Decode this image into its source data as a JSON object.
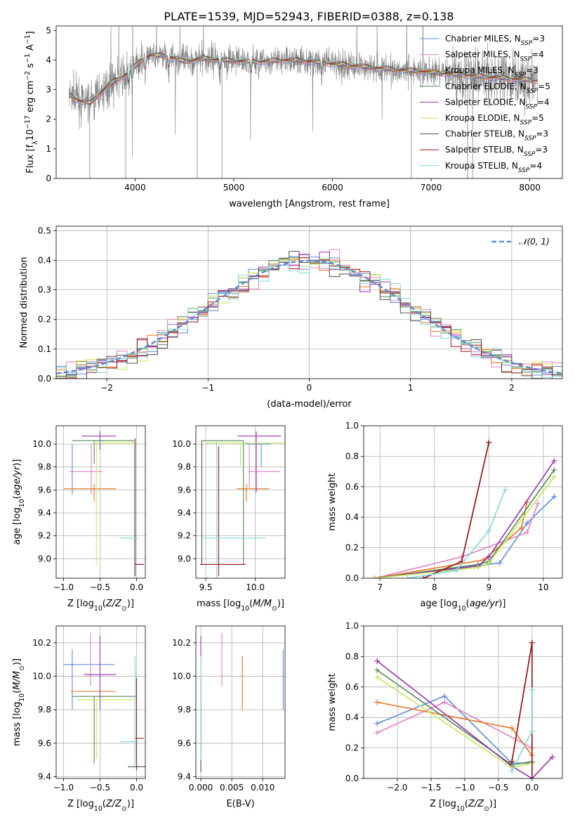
{
  "figure_title": "PLATE=1539, MJD=52943, FIBERID=0388, z=0.138",
  "colors": {
    "Chabrier MILES": "#5b8bd8",
    "Salpeter MILES": "#e37fc4",
    "Kroupa MILES": "#e9731f",
    "Chabrier ELODIE": "#4f8a4f",
    "Salpeter ELODIE": "#9b2fae",
    "Kroupa ELODIE": "#c2e857",
    "Chabrier STELIB": "#4d4d4d",
    "Salpeter STELIB": "#a01414",
    "Kroupa STELIB": "#7fd8dc",
    "data": "#808080",
    "normal": "#5b8bd8",
    "grid": "#b0b0b0"
  },
  "chart_data": [
    {
      "id": "spectrum",
      "type": "line",
      "xlabel": "wavelength [Angstrom, rest frame]",
      "ylabel": "Flux [f_λ10^-17 erg cm^-2 s^-1 A^-1]",
      "xlim": [
        3200,
        8330
      ],
      "ylim": [
        0,
        5.15
      ],
      "xticks": [
        4000,
        5000,
        6000,
        7000,
        8000
      ],
      "yticks": [
        0,
        1,
        2,
        3,
        4,
        5
      ],
      "grid": false,
      "legend_position": "top-right",
      "legend": [
        {
          "name": "Chabrier MILES",
          "nssp": 3
        },
        {
          "name": "Salpeter MILES",
          "nssp": 4
        },
        {
          "name": "Kroupa MILES",
          "nssp": 3
        },
        {
          "name": "Chabrier ELODIE",
          "nssp": 5
        },
        {
          "name": "Salpeter ELODIE",
          "nssp": 4
        },
        {
          "name": "Kroupa ELODIE",
          "nssp": 5
        },
        {
          "name": "Chabrier STELIB",
          "nssp": 3
        },
        {
          "name": "Salpeter STELIB",
          "nssp": 3
        },
        {
          "name": "Kroupa STELIB",
          "nssp": 4
        }
      ],
      "continuum": {
        "x": [
          3350,
          3450,
          3550,
          3650,
          3750,
          3850,
          3950,
          4050,
          4150,
          4300,
          4500,
          4700,
          4900,
          5100,
          5300,
          5500,
          5700,
          5900,
          6100,
          6300,
          6500,
          6700,
          6900,
          7100,
          7300,
          7500,
          7700,
          7900,
          8100
        ],
        "y": [
          2.8,
          2.6,
          2.55,
          2.9,
          3.2,
          3.4,
          3.6,
          3.95,
          4.15,
          4.15,
          3.95,
          4.05,
          4.0,
          3.95,
          3.95,
          4.0,
          3.98,
          3.9,
          3.85,
          3.78,
          3.72,
          3.66,
          3.62,
          3.55,
          3.5,
          3.45,
          3.4,
          3.35,
          3.3
        ]
      }
    },
    {
      "id": "residuals",
      "type": "histogram",
      "xlabel": "(data-model)/error",
      "ylabel": "Normed distribution",
      "xlim": [
        -2.5,
        2.5
      ],
      "ylim": [
        0,
        0.515
      ],
      "xticks": [
        -2,
        -1,
        0,
        1,
        2
      ],
      "yticks": [
        0.0,
        0.1,
        0.2,
        0.3,
        0.4,
        0.5
      ],
      "grid": true,
      "legend_position": "top-right",
      "legend": [
        "𝒩(0, 1)"
      ],
      "bin_width": 0.1,
      "curve": {
        "mean": 0,
        "sigma": 1
      }
    },
    {
      "id": "age_vs_Z",
      "type": "errorbar",
      "xlabel": "Z [log10(Z/Z⊙)]",
      "ylabel": "age [log10(age/yr)]",
      "xlim": [
        -1.1,
        0.12
      ],
      "ylim": [
        8.83,
        10.16
      ],
      "xticks": [
        -1.0,
        -0.5,
        0.0
      ],
      "yticks": [
        9.0,
        9.2,
        9.4,
        9.6,
        9.8,
        10.0
      ],
      "points": [
        {
          "s": "Chabrier MILES",
          "x": -0.88,
          "y": 10.0,
          "xl": -0.27,
          "xh": -0.38,
          "yl": -0.44,
          "yh": 0.0
        },
        {
          "s": "Salpeter MILES",
          "x": -0.62,
          "y": 9.76,
          "xl": -0.3,
          "xh": 0.15,
          "yl": -0.2,
          "yh": 0.24
        },
        {
          "s": "Kroupa MILES",
          "x": -0.58,
          "y": 9.61,
          "xl": -0.42,
          "xh": 0.3,
          "yl": -0.11,
          "yh": 0.04
        },
        {
          "s": "Chabrier ELODIE",
          "x": -0.58,
          "y": 10.03,
          "xl": -0.3,
          "xh": 0.55,
          "yl": -0.2,
          "yh": 0.0
        },
        {
          "s": "Salpeter ELODIE",
          "x": -0.5,
          "y": 10.07,
          "xl": -0.25,
          "xh": 0.22,
          "yl": -0.12,
          "yh": 0.04
        },
        {
          "s": "Kroupa ELODIE",
          "x": -0.55,
          "y": 10.01,
          "xl": -0.05,
          "xh": 0.53,
          "yl": -1.07,
          "yh": 0.0
        },
        {
          "s": "Chabrier STELIB",
          "x": 0.0,
          "y": 8.95,
          "xl": -0.02,
          "xh": 0.08,
          "yl": 0.0,
          "yh": 0.0
        },
        {
          "s": "Salpeter STELIB",
          "x": -0.02,
          "y": 8.95,
          "xl": 0.0,
          "xh": 0.12,
          "yl": -0.1,
          "yh": 1.1
        },
        {
          "s": "Kroupa STELIB",
          "x": -0.03,
          "y": 9.18,
          "xl": -0.2,
          "xh": 0.05,
          "yl": -0.35,
          "yh": 0.81
        }
      ]
    },
    {
      "id": "age_vs_mass",
      "type": "errorbar",
      "xlabel": "mass [log10(M/M⊙)]",
      "ylabel": "",
      "xlim": [
        9.4,
        10.3
      ],
      "ylim": [
        8.83,
        10.16
      ],
      "xticks": [
        9.5,
        10.0
      ],
      "yticks": [
        9.0,
        9.2,
        9.4,
        9.6,
        9.8,
        10.0
      ],
      "points": [
        {
          "s": "Chabrier MILES",
          "x": 10.06,
          "y": 10.0,
          "xl": -0.16,
          "xh": 0.1,
          "yl": -0.2,
          "yh": 0.0
        },
        {
          "s": "Salpeter MILES",
          "x": 9.94,
          "y": 9.76,
          "xl": -0.01,
          "xh": 0.31,
          "yl": -0.14,
          "yh": 0.24
        },
        {
          "s": "Kroupa MILES",
          "x": 9.91,
          "y": 9.61,
          "xl": -0.1,
          "xh": 0.23,
          "yl": -0.11,
          "yh": 0.04
        },
        {
          "s": "Chabrier ELODIE",
          "x": 9.88,
          "y": 10.03,
          "xl": -0.42,
          "xh": 0.0,
          "yl": -1.08,
          "yh": 0.0
        },
        {
          "s": "Salpeter ELODIE",
          "x": 10.01,
          "y": 10.07,
          "xl": -0.19,
          "xh": 0.25,
          "yl": -0.49,
          "yh": 0.04
        },
        {
          "s": "Kroupa ELODIE",
          "x": 9.85,
          "y": 10.01,
          "xl": -0.35,
          "xh": 0.5,
          "yl": -0.2,
          "yh": 0.0
        },
        {
          "s": "Chabrier STELIB",
          "x": 9.46,
          "y": 8.95,
          "xl": -0.02,
          "xh": 0.42,
          "yl": 0.0,
          "yh": 1.08
        },
        {
          "s": "Salpeter STELIB",
          "x": 9.63,
          "y": 8.95,
          "xl": -0.17,
          "xh": 0.27,
          "yl": -0.1,
          "yh": 1.03
        },
        {
          "s": "Kroupa STELIB",
          "x": 9.61,
          "y": 9.18,
          "xl": -0.15,
          "xh": 0.5,
          "yl": -0.35,
          "yh": 0.84
        }
      ]
    },
    {
      "id": "mass_weight_vs_age",
      "type": "line",
      "xlabel": "age [log10(age/yr)]",
      "ylabel": "mass weight",
      "xlim": [
        6.7,
        10.35
      ],
      "ylim": [
        0,
        1.0
      ],
      "xticks": [
        7,
        8,
        9,
        10
      ],
      "yticks": [
        0.0,
        0.2,
        0.4,
        0.6,
        0.8,
        1.0
      ],
      "grid": true,
      "series": [
        {
          "s": "Chabrier MILES",
          "x": [
            6.9,
            9.2,
            9.7,
            10.2
          ],
          "y": [
            0.0,
            0.1,
            0.36,
            0.535
          ]
        },
        {
          "s": "Salpeter MILES",
          "x": [
            6.9,
            8.5,
            9.7,
            9.9
          ],
          "y": [
            0.0,
            0.14,
            0.3,
            0.49
          ]
        },
        {
          "s": "Kroupa MILES",
          "x": [
            6.9,
            8.9,
            9.6,
            9.7
          ],
          "y": [
            0.0,
            0.12,
            0.33,
            0.5
          ]
        },
        {
          "s": "Chabrier ELODIE",
          "x": [
            6.9,
            8.8,
            9.0,
            10.2
          ],
          "y": [
            0.0,
            0.09,
            0.11,
            0.71
          ]
        },
        {
          "s": "Salpeter ELODIE",
          "x": [
            6.9,
            8.8,
            9.0,
            10.2
          ],
          "y": [
            0.0,
            0.08,
            0.14,
            0.77
          ]
        },
        {
          "s": "Kroupa ELODIE",
          "x": [
            6.9,
            8.8,
            9.0,
            10.2
          ],
          "y": [
            0.0,
            0.07,
            0.1,
            0.665
          ]
        },
        {
          "s": "Chabrier STELIB",
          "x": [
            7.8,
            8.5,
            9.0
          ],
          "y": [
            0.0,
            0.11,
            0.89
          ]
        },
        {
          "s": "Salpeter STELIB",
          "x": [
            7.8,
            8.5,
            9.0
          ],
          "y": [
            0.0,
            0.11,
            0.89
          ]
        },
        {
          "s": "Kroupa STELIB",
          "x": [
            7.5,
            8.4,
            9.0,
            9.3
          ],
          "y": [
            0.0,
            0.05,
            0.31,
            0.58
          ]
        }
      ]
    },
    {
      "id": "mass_vs_Z",
      "type": "errorbar",
      "xlabel": "Z [log10(Z/Z⊙)]",
      "ylabel": "mass [log10(M/M⊙)]",
      "xlim": [
        -1.1,
        0.12
      ],
      "ylim": [
        9.39,
        10.3
      ],
      "xticks": [
        -1.0,
        -0.5,
        0.0
      ],
      "yticks": [
        9.4,
        9.6,
        9.8,
        10.0,
        10.2
      ],
      "points": [
        {
          "s": "Chabrier MILES",
          "x": -0.88,
          "y": 10.07,
          "xl": -0.12,
          "xh": 0.58,
          "yl": -0.27,
          "yh": 0.09
        },
        {
          "s": "Salpeter MILES",
          "x": -0.63,
          "y": 10.0,
          "xl": -0.05,
          "xh": 0.0,
          "yl": -0.06,
          "yh": 0.26
        },
        {
          "s": "Kroupa MILES",
          "x": -0.68,
          "y": 9.91,
          "xl": -0.22,
          "xh": 0.4,
          "yl": 0.0,
          "yh": 0.0
        },
        {
          "s": "Chabrier ELODIE",
          "x": -0.58,
          "y": 9.88,
          "xl": -0.3,
          "xh": 0.58,
          "yl": -0.4,
          "yh": 0.0
        },
        {
          "s": "Salpeter ELODIE",
          "x": -0.5,
          "y": 10.01,
          "xl": -0.22,
          "xh": 0.22,
          "yl": -0.21,
          "yh": 0.23
        },
        {
          "s": "Kroupa ELODIE",
          "x": -0.55,
          "y": 9.86,
          "xl": -0.27,
          "xh": 0.51,
          "yl": -0.35,
          "yh": 0.0
        },
        {
          "s": "Chabrier STELIB",
          "x": -0.02,
          "y": 9.46,
          "xl": -0.1,
          "xh": 0.14,
          "yl": 0.0,
          "yh": 0.42
        },
        {
          "s": "Salpeter STELIB",
          "x": 0.0,
          "y": 9.63,
          "xl": -0.02,
          "xh": 0.1,
          "yl": -0.19,
          "yh": 0.36
        },
        {
          "s": "Kroupa STELIB",
          "x": -0.02,
          "y": 9.61,
          "xl": -0.2,
          "xh": 0.05,
          "yl": -0.16,
          "yh": 0.51
        }
      ]
    },
    {
      "id": "mass_vs_EBV",
      "type": "errorbar",
      "xlabel": "E(B-V)",
      "ylabel": "",
      "xlim": [
        -0.0008,
        0.0136
      ],
      "ylim": [
        9.39,
        10.3
      ],
      "xticks": [
        0.0,
        0.005,
        0.01
      ],
      "yticks": [
        9.4,
        9.6,
        9.8,
        10.0,
        10.2
      ],
      "points": [
        {
          "s": "Chabrier MILES",
          "x": 0.0133,
          "y": 10.0,
          "xl": 0,
          "xh": 0,
          "yl": -0.2,
          "yh": 0.16
        },
        {
          "s": "Salpeter MILES",
          "x": 0.0034,
          "y": 10.1,
          "xl": 0,
          "xh": 0,
          "yl": -0.16,
          "yh": 0.16
        },
        {
          "s": "Kroupa MILES",
          "x": 0.0067,
          "y": 9.96,
          "xl": 0,
          "xh": 0,
          "yl": -0.16,
          "yh": 0.16
        },
        {
          "s": "Chabrier ELODIE",
          "x": 0.0,
          "y": 9.85,
          "xl": 0,
          "xh": 0,
          "yl": -0.35,
          "yh": 0.0
        },
        {
          "s": "Salpeter ELODIE",
          "x": 0.0,
          "y": 10.0,
          "xl": 0,
          "xh": 0,
          "yl": -0.2,
          "yh": 0.24
        },
        {
          "s": "Kroupa ELODIE",
          "x": 0.0,
          "y": 9.85,
          "xl": 0,
          "xh": 0,
          "yl": -0.4,
          "yh": 0.0
        },
        {
          "s": "Chabrier STELIB",
          "x": 0.0,
          "y": 9.46,
          "xl": 0,
          "xh": 0,
          "yl": -0.03,
          "yh": 0.35
        },
        {
          "s": "Salpeter STELIB",
          "x": 0.0,
          "y": 9.63,
          "xl": 0,
          "xh": 0,
          "yl": -0.1,
          "yh": 0.36
        },
        {
          "s": "Kroupa STELIB",
          "x": 0.0,
          "y": 9.8,
          "xl": 0,
          "xh": 0,
          "yl": -0.3,
          "yh": 0.32
        }
      ]
    },
    {
      "id": "mass_weight_vs_Z",
      "type": "line",
      "xlabel": "Z [log10(Z/Z⊙)]",
      "ylabel": "mass weight",
      "xlim": [
        -2.5,
        0.45
      ],
      "ylim": [
        0,
        1.0
      ],
      "xticks": [
        -2.0,
        -1.5,
        -1.0,
        -0.5,
        0.0
      ],
      "yticks": [
        0.0,
        0.2,
        0.4,
        0.6,
        0.8,
        1.0
      ],
      "grid": true,
      "series": [
        {
          "s": "Chabrier MILES",
          "x": [
            -2.3,
            -1.3,
            -0.3,
            0.0
          ],
          "y": [
            0.36,
            0.54,
            0.1,
            0.1
          ]
        },
        {
          "s": "Salpeter MILES",
          "x": [
            -2.3,
            -1.3,
            0.0
          ],
          "y": [
            0.3,
            0.5,
            0.2
          ]
        },
        {
          "s": "Kroupa MILES",
          "x": [
            -2.3,
            -0.3,
            0.0
          ],
          "y": [
            0.5,
            0.33,
            0.15
          ]
        },
        {
          "s": "Chabrier ELODIE",
          "x": [
            -2.3,
            -0.3,
            0.0
          ],
          "y": [
            0.71,
            0.09,
            0.11
          ]
        },
        {
          "s": "Salpeter ELODIE",
          "x": [
            -2.3,
            -0.3,
            0.0,
            0.3
          ],
          "y": [
            0.77,
            0.08,
            0.0,
            0.14
          ]
        },
        {
          "s": "Kroupa ELODIE",
          "x": [
            -2.3,
            -0.3,
            0.0
          ],
          "y": [
            0.665,
            0.07,
            0.1
          ]
        },
        {
          "s": "Chabrier STELIB",
          "x": [
            -0.3,
            0.0,
            0.0
          ],
          "y": [
            0.11,
            0.89,
            0.0
          ]
        },
        {
          "s": "Salpeter STELIB",
          "x": [
            -0.3,
            0.0,
            0.0
          ],
          "y": [
            0.11,
            0.89,
            0.0
          ]
        },
        {
          "s": "Kroupa STELIB",
          "x": [
            -0.3,
            0.0,
            0.0
          ],
          "y": [
            0.05,
            0.31,
            0.58
          ]
        }
      ]
    }
  ]
}
